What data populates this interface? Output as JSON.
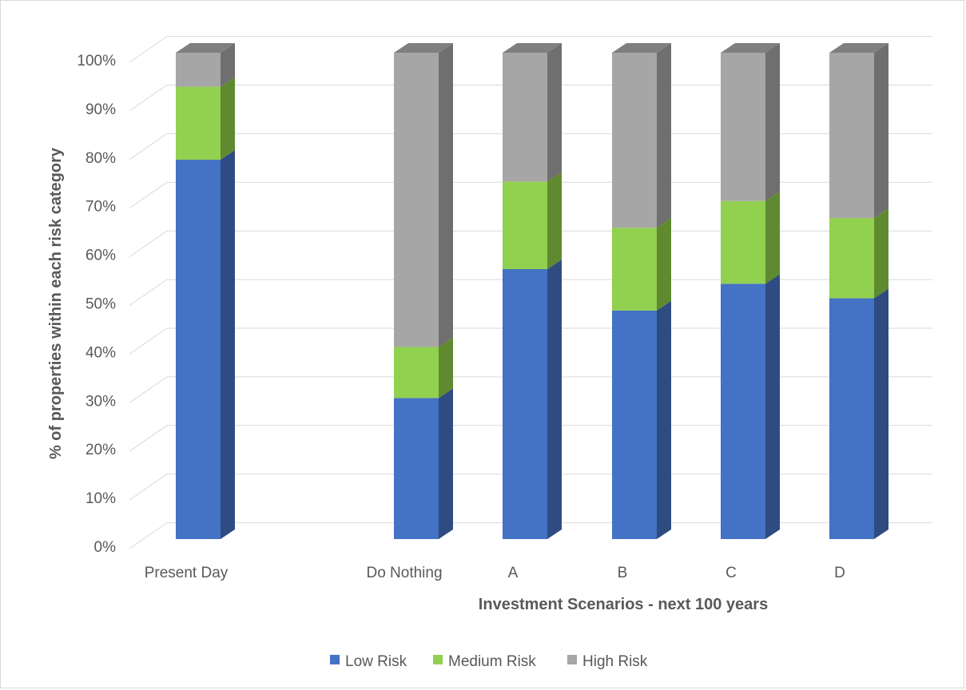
{
  "chart_data": {
    "type": "bar",
    "stacked": true,
    "three_d": true,
    "categories": [
      "Present Day",
      "",
      "Do Nothing",
      "A",
      "B",
      "C",
      "D"
    ],
    "series": [
      {
        "name": "Low Risk",
        "color": "#4472c4",
        "side_color": "#2e4c82",
        "values": [
          78,
          null,
          29,
          55.5,
          47,
          52.5,
          49.5
        ]
      },
      {
        "name": "Medium Risk",
        "color": "#92d050",
        "side_color": "#5f8a2f",
        "values": [
          15,
          null,
          10.5,
          18,
          17,
          17,
          16.5
        ]
      },
      {
        "name": "High Risk",
        "color": "#a6a6a6",
        "side_color": "#6f6f6f",
        "values": [
          7,
          null,
          60.5,
          26.5,
          36,
          30.5,
          34
        ]
      }
    ],
    "y_ticks": [
      "0%",
      "10%",
      "20%",
      "30%",
      "40%",
      "50%",
      "60%",
      "70%",
      "80%",
      "90%",
      "100%"
    ],
    "ylim": [
      0,
      100
    ],
    "xlabel": "Investment Scenarios - next 100 years",
    "ylabel": "% of properties within each risk category",
    "legend_position": "bottom",
    "grid": true
  }
}
